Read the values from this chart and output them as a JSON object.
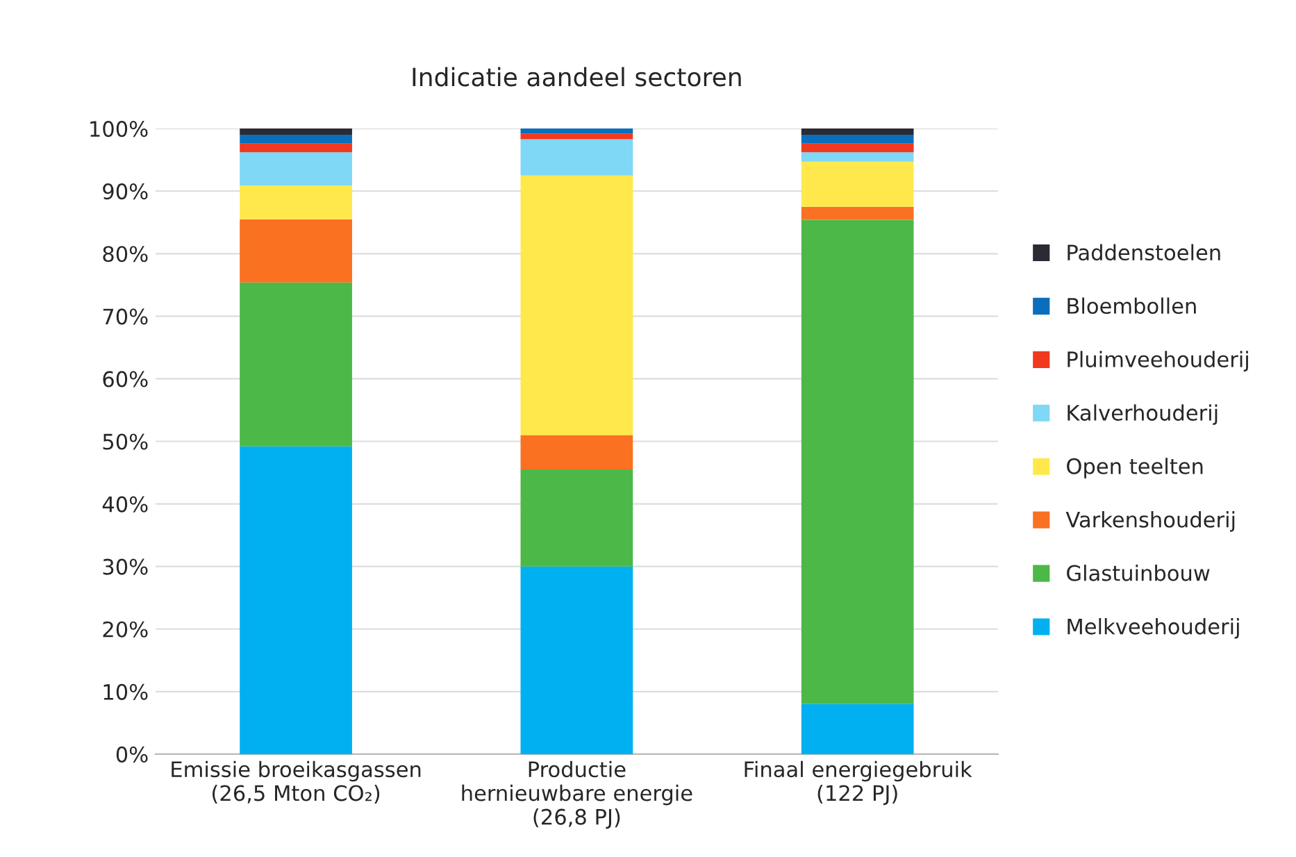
{
  "chart_data": {
    "type": "bar",
    "title": "Indicatie aandeel sectoren",
    "stacked": true,
    "categories": [
      "Emissie broeikasgassen\n(26,5 Mton CO₂)",
      "Productie\nhernieuwbare energie\n(26,8 PJ)",
      "Finaal energiegebruik\n(122 PJ)"
    ],
    "series": [
      {
        "name": "Melkveehouderij",
        "color": "#00b0f0",
        "values": [
          49.2,
          30.0,
          8.0
        ]
      },
      {
        "name": "Glastuinbouw",
        "color": "#4cb848",
        "values": [
          26.2,
          15.5,
          77.4
        ]
      },
      {
        "name": "Varkenshouderij",
        "color": "#f97121",
        "values": [
          10.1,
          5.5,
          2.1
        ]
      },
      {
        "name": "Open teelten",
        "color": "#ffe84c",
        "values": [
          5.4,
          41.5,
          7.2
        ]
      },
      {
        "name": "Kalverhouderij",
        "color": "#7fd8f5",
        "values": [
          5.3,
          5.8,
          1.5
        ]
      },
      {
        "name": "Pluimveehouderij",
        "color": "#f0391f",
        "values": [
          1.4,
          0.9,
          1.4
        ]
      },
      {
        "name": "Bloembollen",
        "color": "#0a6ebd",
        "values": [
          1.4,
          0.8,
          1.4
        ]
      },
      {
        "name": "Paddenstoelen",
        "color": "#2b2b33",
        "values": [
          1.0,
          null,
          1.0
        ]
      }
    ],
    "ylim": [
      0,
      100
    ],
    "yticks": [
      {
        "value": 0,
        "label": "0%"
      },
      {
        "value": 10,
        "label": "10%"
      },
      {
        "value": 20,
        "label": "20%"
      },
      {
        "value": 30,
        "label": "30%"
      },
      {
        "value": 40,
        "label": "40%"
      },
      {
        "value": 50,
        "label": "50%"
      },
      {
        "value": 60,
        "label": "60%"
      },
      {
        "value": 70,
        "label": "70%"
      },
      {
        "value": 80,
        "label": "80%"
      },
      {
        "value": 90,
        "label": "90%"
      },
      {
        "value": 100,
        "label": "100%"
      }
    ],
    "grid": "y",
    "legend": "right"
  }
}
